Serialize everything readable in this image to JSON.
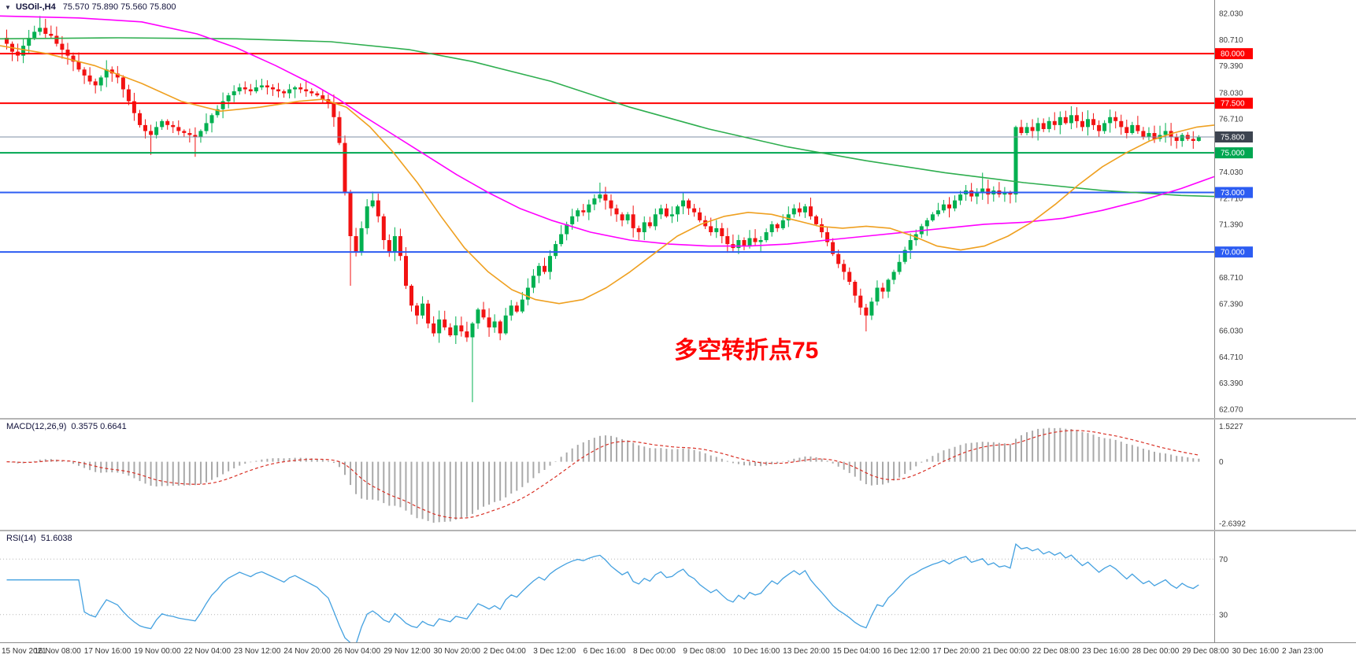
{
  "colors": {
    "up_candle": "#00b050",
    "down_candle": "#f21212",
    "macd_histogram": "#a9a9a9",
    "macd_signal": "#d93025",
    "rsi_line": "#44a1e0",
    "annotation": "#ff0000",
    "axis_text": "#3c3c3c"
  },
  "header": {
    "collapse_arrow": "▼",
    "symbol_period": "USOil-,H4",
    "ohlc_text": "75.570 75.890 75.560 75.800"
  },
  "annotation": {
    "text": "多空转折点75"
  },
  "panels": {
    "macd": {
      "label": "MACD(12,26,9)",
      "values": "0.3575 0.6641",
      "axis_labels": [
        {
          "text": "1.5227",
          "value": 1.5227
        },
        {
          "text": "0",
          "value": 0
        },
        {
          "text": "-2.6392",
          "value": -2.6392
        }
      ]
    },
    "rsi": {
      "label": "RSI(14)",
      "values": "51.6038",
      "axis_labels": [
        {
          "text": "70",
          "value": 70
        },
        {
          "text": "30",
          "value": 30
        }
      ]
    }
  },
  "price_axis": {
    "ticks": [
      "82.030",
      "80.710",
      "79.390",
      "78.030",
      "76.710",
      "74.030",
      "72.710",
      "71.390",
      "68.710",
      "67.390",
      "66.030",
      "64.710",
      "63.390",
      "62.070"
    ],
    "tags": [
      {
        "text": "80.000",
        "value": 80.0,
        "bg": "#ff0000"
      },
      {
        "text": "77.500",
        "value": 77.5,
        "bg": "#ff0000"
      },
      {
        "text": "75.800",
        "value": 75.8,
        "bg": "#3d4450"
      },
      {
        "text": "75.000",
        "value": 75.0,
        "bg": "#00a651"
      },
      {
        "text": "73.000",
        "value": 73.0,
        "bg": "#2c5cf2"
      },
      {
        "text": "70.000",
        "value": 70.0,
        "bg": "#2c5cf2"
      }
    ]
  },
  "time_axis": {
    "labels": [
      "15 Nov 2021",
      "16 Nov 08:00",
      "17 Nov 16:00",
      "19 Nov 00:00",
      "22 Nov 04:00",
      "23 Nov 12:00",
      "24 Nov 20:00",
      "26 Nov 04:00",
      "29 Nov 12:00",
      "30 Nov 20:00",
      "2 Dec 04:00",
      "3 Dec 12:00",
      "6 Dec 16:00",
      "8 Dec 00:00",
      "9 Dec 08:00",
      "10 Dec 16:00",
      "13 Dec 20:00",
      "15 Dec 04:00",
      "16 Dec 12:00",
      "17 Dec 20:00",
      "21 Dec 00:00",
      "22 Dec 08:00",
      "23 Dec 16:00",
      "28 Dec 00:00",
      "29 Dec 08:00",
      "30 Dec 16:00",
      "2 Jan 23:00"
    ]
  },
  "chart_data": {
    "type": "candlestick",
    "symbol": "USOil-",
    "timeframe": "H4",
    "title": "USOil-,H4 75.570 75.890 75.560 75.800",
    "last_ohlc": {
      "open": 75.57,
      "high": 75.89,
      "low": 75.56,
      "close": 75.8
    },
    "price_range": [
      62.07,
      82.03
    ],
    "first_open": 80.8,
    "closes": [
      80.5,
      80.1,
      79.9,
      80.4,
      80.8,
      81.1,
      81.3,
      81.0,
      80.9,
      80.5,
      80.2,
      79.9,
      79.6,
      79.2,
      78.9,
      78.6,
      78.4,
      78.8,
      79.2,
      79.0,
      78.8,
      78.2,
      77.6,
      77.0,
      76.4,
      76.1,
      75.9,
      76.3,
      76.6,
      76.4,
      76.3,
      76.1,
      76.0,
      75.9,
      75.8,
      76.1,
      76.5,
      76.9,
      77.2,
      77.6,
      77.9,
      78.1,
      78.3,
      78.2,
      78.1,
      78.3,
      78.4,
      78.3,
      78.2,
      78.1,
      78.0,
      78.2,
      78.3,
      78.2,
      78.1,
      78.0,
      77.9,
      77.7,
      77.5,
      76.8,
      75.5,
      73.0,
      70.8,
      70.0,
      71.2,
      72.3,
      72.6,
      71.8,
      70.6,
      70.0,
      70.8,
      69.8,
      68.3,
      67.3,
      66.8,
      67.4,
      66.4,
      65.9,
      66.6,
      66.2,
      65.8,
      66.3,
      66.0,
      65.7,
      66.4,
      67.1,
      66.7,
      66.2,
      66.5,
      65.9,
      66.8,
      67.3,
      67.0,
      67.6,
      68.2,
      68.8,
      69.3,
      69.0,
      69.8,
      70.4,
      70.9,
      71.4,
      71.8,
      72.1,
      72.0,
      72.4,
      72.7,
      72.9,
      72.6,
      72.2,
      71.9,
      71.6,
      71.9,
      71.2,
      71.0,
      71.5,
      71.3,
      71.9,
      72.2,
      71.8,
      71.9,
      72.3,
      72.6,
      72.2,
      72.0,
      71.6,
      71.3,
      71.0,
      71.2,
      70.8,
      70.4,
      70.2,
      70.6,
      70.3,
      70.7,
      70.5,
      70.6,
      71.0,
      71.4,
      71.2,
      71.6,
      71.9,
      72.2,
      72.0,
      72.3,
      71.8,
      71.4,
      71.0,
      70.5,
      69.9,
      69.4,
      69.0,
      68.5,
      67.8,
      67.2,
      66.8,
      67.5,
      68.2,
      68.0,
      68.6,
      69.0,
      69.5,
      70.1,
      70.6,
      70.9,
      71.3,
      71.6,
      71.9,
      72.1,
      72.4,
      72.2,
      72.6,
      72.9,
      73.1,
      72.8,
      73.0,
      73.2,
      72.9,
      73.1,
      72.9,
      73.0,
      72.9,
      76.3,
      76.0,
      76.3,
      76.1,
      76.5,
      76.2,
      76.6,
      76.4,
      76.8,
      76.5,
      76.9,
      76.6,
      76.3,
      76.7,
      76.4,
      76.1,
      76.5,
      76.8,
      76.6,
      76.3,
      76.0,
      76.4,
      76.1,
      75.8,
      76.0,
      75.7,
      75.9,
      76.1,
      75.8,
      75.6,
      75.9,
      75.7,
      75.6,
      75.8
    ],
    "wick_overrides": {
      "6": {
        "high": 81.9
      },
      "26": {
        "low": 74.9
      },
      "34": {
        "low": 74.8
      },
      "62": {
        "low": 68.3
      },
      "84": {
        "low": 62.43
      },
      "107": {
        "high": 73.5
      },
      "155": {
        "low": 66.0
      },
      "176": {
        "high": 74.0
      },
      "192": {
        "high": 77.35
      },
      "215": {
        "high": 75.89,
        "low": 75.56
      }
    },
    "hlines": [
      {
        "price": 80.0,
        "color": "#ff0000",
        "width": 2
      },
      {
        "price": 77.5,
        "color": "#ff0000",
        "width": 2
      },
      {
        "price": 75.0,
        "color": "#00a651",
        "width": 2
      },
      {
        "price": 73.0,
        "color": "#2c5cf2",
        "width": 2
      },
      {
        "price": 70.0,
        "color": "#2c5cf2",
        "width": 2
      }
    ],
    "bid_line": {
      "price": 75.8,
      "color": "#7f8fa6"
    },
    "moving_averages": [
      {
        "name": "ma-slow-green",
        "color": "#2eae4f",
        "points": [
          [
            0,
            80.75
          ],
          [
            150,
            80.8
          ],
          [
            300,
            80.75
          ],
          [
            420,
            80.6
          ],
          [
            520,
            80.2
          ],
          [
            600,
            79.6
          ],
          [
            700,
            78.6
          ],
          [
            800,
            77.3
          ],
          [
            900,
            76.2
          ],
          [
            1000,
            75.3
          ],
          [
            1100,
            74.6
          ],
          [
            1200,
            74.0
          ],
          [
            1300,
            73.5
          ],
          [
            1400,
            73.1
          ],
          [
            1500,
            72.85
          ],
          [
            1542,
            72.8
          ]
        ]
      },
      {
        "name": "ma-mid-magenta",
        "color": "#ff00ff",
        "points": [
          [
            0,
            81.9
          ],
          [
            100,
            81.8
          ],
          [
            180,
            81.6
          ],
          [
            250,
            81.0
          ],
          [
            300,
            80.3
          ],
          [
            350,
            79.4
          ],
          [
            400,
            78.4
          ],
          [
            430,
            77.7
          ],
          [
            460,
            76.9
          ],
          [
            500,
            75.9
          ],
          [
            540,
            74.9
          ],
          [
            580,
            73.9
          ],
          [
            620,
            73.0
          ],
          [
            660,
            72.2
          ],
          [
            700,
            71.6
          ],
          [
            750,
            71.0
          ],
          [
            800,
            70.6
          ],
          [
            850,
            70.4
          ],
          [
            900,
            70.3
          ],
          [
            950,
            70.3
          ],
          [
            1000,
            70.4
          ],
          [
            1050,
            70.6
          ],
          [
            1100,
            70.8
          ],
          [
            1150,
            71.0
          ],
          [
            1200,
            71.2
          ],
          [
            1250,
            71.4
          ],
          [
            1300,
            71.5
          ],
          [
            1350,
            71.7
          ],
          [
            1400,
            72.1
          ],
          [
            1450,
            72.6
          ],
          [
            1500,
            73.2
          ],
          [
            1542,
            73.8
          ]
        ]
      },
      {
        "name": "ma-fast-orange",
        "color": "#efa020",
        "points": [
          [
            0,
            80.4
          ],
          [
            60,
            80.0
          ],
          [
            120,
            79.4
          ],
          [
            180,
            78.5
          ],
          [
            230,
            77.6
          ],
          [
            280,
            77.1
          ],
          [
            330,
            77.3
          ],
          [
            380,
            77.6
          ],
          [
            410,
            77.7
          ],
          [
            440,
            77.3
          ],
          [
            470,
            76.3
          ],
          [
            500,
            75.0
          ],
          [
            530,
            73.5
          ],
          [
            560,
            71.8
          ],
          [
            590,
            70.2
          ],
          [
            620,
            69.0
          ],
          [
            650,
            68.1
          ],
          [
            680,
            67.6
          ],
          [
            710,
            67.4
          ],
          [
            740,
            67.6
          ],
          [
            770,
            68.2
          ],
          [
            800,
            69.0
          ],
          [
            830,
            69.9
          ],
          [
            860,
            70.8
          ],
          [
            890,
            71.4
          ],
          [
            920,
            71.8
          ],
          [
            950,
            72.0
          ],
          [
            980,
            71.9
          ],
          [
            1010,
            71.6
          ],
          [
            1040,
            71.3
          ],
          [
            1070,
            71.2
          ],
          [
            1100,
            71.3
          ],
          [
            1130,
            71.2
          ],
          [
            1160,
            70.8
          ],
          [
            1190,
            70.3
          ],
          [
            1220,
            70.1
          ],
          [
            1250,
            70.3
          ],
          [
            1280,
            70.8
          ],
          [
            1310,
            71.5
          ],
          [
            1340,
            72.4
          ],
          [
            1370,
            73.4
          ],
          [
            1400,
            74.3
          ],
          [
            1430,
            75.0
          ],
          [
            1460,
            75.6
          ],
          [
            1490,
            76.0
          ],
          [
            1520,
            76.3
          ],
          [
            1542,
            76.4
          ]
        ]
      }
    ],
    "macd": {
      "params": [
        12,
        26,
        9
      ],
      "current_main": 0.3575,
      "current_signal": 0.6641,
      "axis_range": [
        -2.9,
        1.8
      ]
    },
    "rsi": {
      "params": [
        14
      ],
      "current": 51.6038,
      "levels": [
        30,
        70
      ],
      "axis_range": [
        10,
        90
      ]
    }
  }
}
